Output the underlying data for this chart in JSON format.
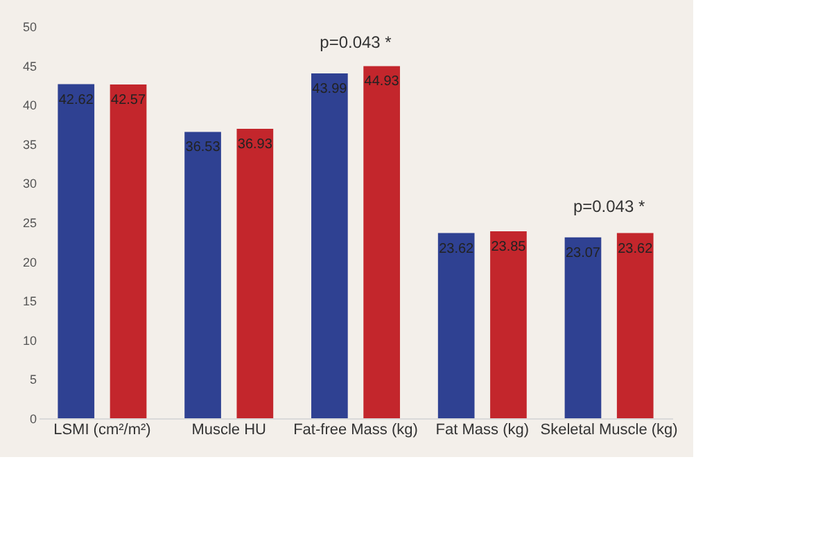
{
  "chart_data": {
    "type": "bar",
    "categories": [
      "LSMI (cm²/m²)",
      "Muscle HU",
      "Fat-free Mass (kg)",
      "Fat Mass (kg)",
      "Skeletal Muscle (kg)"
    ],
    "series": [
      {
        "color": "#2f4192",
        "values": [
          42.62,
          36.53,
          43.99,
          23.62,
          23.07
        ]
      },
      {
        "color": "#c3262c",
        "values": [
          42.57,
          36.93,
          44.93,
          23.85,
          23.62
        ]
      }
    ],
    "ylim": [
      0,
      50
    ],
    "yticks": [
      0,
      5,
      10,
      15,
      20,
      25,
      30,
      35,
      40,
      45,
      50
    ],
    "data_labels": true,
    "grid": false,
    "annotations": [
      "p=0.043 *",
      "p=0.043 *"
    ]
  }
}
